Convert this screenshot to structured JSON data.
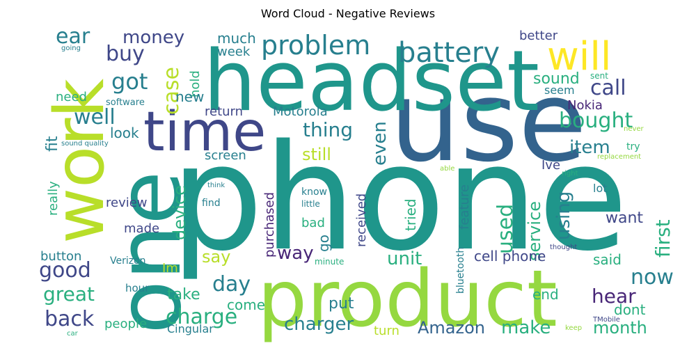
{
  "title": "Word Cloud - Negative Reviews",
  "palette": {
    "teal": "#1f968b",
    "darkteal": "#277f8e",
    "blue": "#33638d",
    "navy": "#3f4788",
    "purple": "#482677",
    "green": "#29af7f",
    "lightgreen": "#55c667",
    "lime": "#95d840",
    "yellowgreen": "#b8de29",
    "yellow": "#fde725"
  },
  "words": [
    {
      "text": "phone",
      "color": "teal"
    },
    {
      "text": "use",
      "color": "blue"
    },
    {
      "text": "headset",
      "color": "teal"
    },
    {
      "text": "product",
      "color": "lime"
    },
    {
      "text": "one",
      "color": "teal"
    },
    {
      "text": "work",
      "color": "yellowgreen"
    },
    {
      "text": "time",
      "color": "navy"
    },
    {
      "text": "will",
      "color": "yellow"
    },
    {
      "text": "problem",
      "color": "darkteal"
    },
    {
      "text": "battery",
      "color": "darkteal"
    },
    {
      "text": "charge",
      "color": "green"
    },
    {
      "text": "charger",
      "color": "darkteal"
    },
    {
      "text": "Amazon",
      "color": "blue"
    },
    {
      "text": "make",
      "color": "green"
    },
    {
      "text": "month",
      "color": "green"
    },
    {
      "text": "back",
      "color": "navy"
    },
    {
      "text": "good",
      "color": "navy"
    },
    {
      "text": "great",
      "color": "green"
    },
    {
      "text": "day",
      "color": "darkteal"
    },
    {
      "text": "hear",
      "color": "purple"
    },
    {
      "text": "now",
      "color": "darkteal"
    },
    {
      "text": "first",
      "color": "green"
    },
    {
      "text": "used",
      "color": "green"
    },
    {
      "text": "using",
      "color": "darkteal"
    },
    {
      "text": "service",
      "color": "green"
    },
    {
      "text": "unit",
      "color": "green"
    },
    {
      "text": "way",
      "color": "purple"
    },
    {
      "text": "say",
      "color": "yellowgreen"
    },
    {
      "text": "device",
      "color": "green"
    },
    {
      "text": "item",
      "color": "darkteal"
    },
    {
      "text": "bought",
      "color": "green"
    },
    {
      "text": "call",
      "color": "navy"
    },
    {
      "text": "got",
      "color": "darkteal"
    },
    {
      "text": "buy",
      "color": "navy"
    },
    {
      "text": "case",
      "color": "yellowgreen"
    },
    {
      "text": "well",
      "color": "darkteal"
    },
    {
      "text": "ear",
      "color": "darkteal"
    },
    {
      "text": "money",
      "color": "navy"
    },
    {
      "text": "thing",
      "color": "darkteal"
    },
    {
      "text": "even",
      "color": "darkteal"
    },
    {
      "text": "still",
      "color": "yellowgreen"
    },
    {
      "text": "Motorola",
      "color": "darkteal"
    },
    {
      "text": "Nokia",
      "color": "purple"
    },
    {
      "text": "sound",
      "color": "green"
    },
    {
      "text": "better",
      "color": "navy"
    },
    {
      "text": "seem",
      "color": "darkteal"
    },
    {
      "text": "much",
      "color": "darkteal"
    },
    {
      "text": "week",
      "color": "darkteal"
    },
    {
      "text": "hold",
      "color": "green"
    },
    {
      "text": "new",
      "color": "darkteal"
    },
    {
      "text": "return",
      "color": "navy"
    },
    {
      "text": "screen",
      "color": "darkteal"
    },
    {
      "text": "look",
      "color": "darkteal"
    },
    {
      "text": "fit",
      "color": "darkteal"
    },
    {
      "text": "need",
      "color": "green"
    },
    {
      "text": "software",
      "color": "darkteal"
    },
    {
      "text": "sound quality",
      "color": "darkteal"
    },
    {
      "text": "really",
      "color": "green"
    },
    {
      "text": "review",
      "color": "navy"
    },
    {
      "text": "made",
      "color": "navy"
    },
    {
      "text": "button",
      "color": "darkteal"
    },
    {
      "text": "Verizon",
      "color": "darkteal"
    },
    {
      "text": "purchased",
      "color": "purple"
    },
    {
      "text": "received",
      "color": "navy"
    },
    {
      "text": "tried",
      "color": "green"
    },
    {
      "text": "feature",
      "color": "darkteal"
    },
    {
      "text": "Ive",
      "color": "navy"
    },
    {
      "text": "try",
      "color": "green"
    },
    {
      "text": "lot",
      "color": "darkteal"
    },
    {
      "text": "want",
      "color": "navy"
    },
    {
      "text": "cell phone",
      "color": "navy"
    },
    {
      "text": "said",
      "color": "green"
    },
    {
      "text": "end",
      "color": "green"
    },
    {
      "text": "dont",
      "color": "green"
    },
    {
      "text": "take",
      "color": "green"
    },
    {
      "text": "come",
      "color": "green"
    },
    {
      "text": "put",
      "color": "darkteal"
    },
    {
      "text": "turn",
      "color": "yellowgreen"
    },
    {
      "text": "people",
      "color": "green"
    },
    {
      "text": "Cingular",
      "color": "darkteal"
    },
    {
      "text": "Im",
      "color": "yellowgreen"
    },
    {
      "text": "hour",
      "color": "darkteal"
    },
    {
      "text": "know",
      "color": "darkteal"
    },
    {
      "text": "bad",
      "color": "green"
    },
    {
      "text": "go",
      "color": "darkteal"
    },
    {
      "text": "find",
      "color": "darkteal"
    },
    {
      "text": "think",
      "color": "darkteal"
    },
    {
      "text": "little",
      "color": "darkteal"
    },
    {
      "text": "minute",
      "color": "green"
    },
    {
      "text": "bluetooth",
      "color": "darkteal"
    },
    {
      "text": "thought",
      "color": "navy"
    },
    {
      "text": "sent",
      "color": "green"
    },
    {
      "text": "never",
      "color": "lime"
    },
    {
      "text": "replacement",
      "color": "lime"
    },
    {
      "text": "right",
      "color": "green"
    },
    {
      "text": "able",
      "color": "lime"
    },
    {
      "text": "keep",
      "color": "lime"
    },
    {
      "text": "TMobile",
      "color": "navy"
    },
    {
      "text": "going",
      "color": "darkteal"
    },
    {
      "text": "car",
      "color": "green"
    }
  ]
}
